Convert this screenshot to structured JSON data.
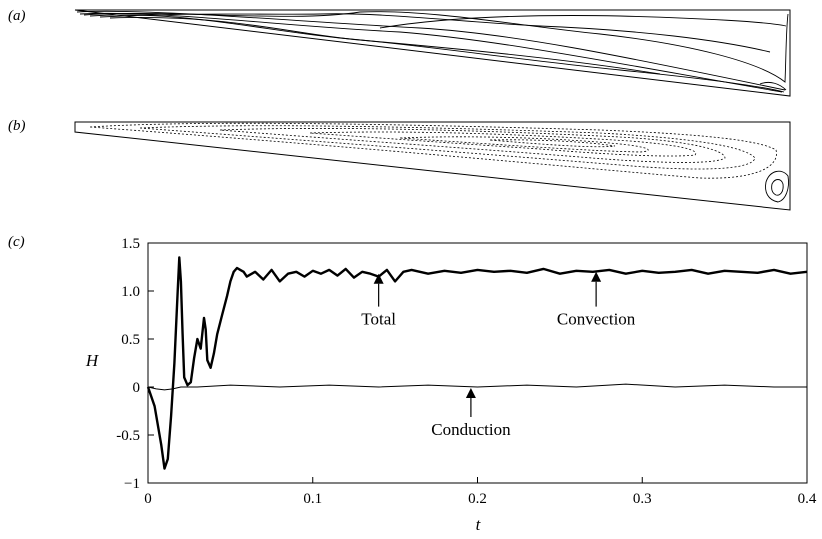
{
  "panels": [
    {
      "label": "(a)"
    },
    {
      "label": "(b)"
    },
    {
      "label": "(c)"
    }
  ],
  "chart_data": {
    "type": "line",
    "xlabel": "t",
    "ylabel": "H",
    "xlim": [
      0,
      0.4
    ],
    "ylim": [
      -1,
      1.5
    ],
    "x_ticks": [
      0,
      0.1,
      0.2,
      0.3,
      0.4
    ],
    "x_tick_labels": [
      "0",
      "0.1",
      "0.2",
      "0.3",
      "0.4"
    ],
    "y_ticks": [
      -1,
      -0.5,
      0,
      0.5,
      1.0,
      1.5
    ],
    "y_tick_labels": [
      "−1",
      "-0.5",
      "0",
      "0.5",
      "1.0",
      "1.5"
    ],
    "grid": false,
    "legend": "none",
    "series": [
      {
        "name": "Total",
        "style": "thick",
        "x": [
          0,
          0.004,
          0.008,
          0.01,
          0.012,
          0.014,
          0.016,
          0.018,
          0.019,
          0.02,
          0.021,
          0.022,
          0.024,
          0.026,
          0.028,
          0.03,
          0.032,
          0.034,
          0.035,
          0.036,
          0.038,
          0.04,
          0.042,
          0.045,
          0.048,
          0.05,
          0.052,
          0.054,
          0.056,
          0.058,
          0.06,
          0.065,
          0.07,
          0.075,
          0.08,
          0.085,
          0.09,
          0.095,
          0.1,
          0.105,
          0.11,
          0.115,
          0.12,
          0.125,
          0.13,
          0.135,
          0.14,
          0.145,
          0.15,
          0.155,
          0.16,
          0.17,
          0.18,
          0.19,
          0.2,
          0.21,
          0.22,
          0.23,
          0.24,
          0.25,
          0.26,
          0.27,
          0.28,
          0.29,
          0.3,
          0.31,
          0.32,
          0.33,
          0.34,
          0.35,
          0.36,
          0.37,
          0.38,
          0.39,
          0.4
        ],
        "values": [
          0,
          -0.2,
          -0.6,
          -0.85,
          -0.75,
          -0.3,
          0.25,
          1.0,
          1.35,
          1.1,
          0.55,
          0.1,
          0.02,
          0.05,
          0.3,
          0.5,
          0.4,
          0.72,
          0.6,
          0.28,
          0.2,
          0.35,
          0.55,
          0.75,
          0.95,
          1.1,
          1.2,
          1.24,
          1.22,
          1.2,
          1.15,
          1.2,
          1.12,
          1.22,
          1.1,
          1.18,
          1.2,
          1.15,
          1.21,
          1.18,
          1.22,
          1.16,
          1.23,
          1.14,
          1.2,
          1.18,
          1.15,
          1.22,
          1.1,
          1.2,
          1.22,
          1.18,
          1.21,
          1.19,
          1.22,
          1.2,
          1.21,
          1.19,
          1.23,
          1.18,
          1.21,
          1.2,
          1.22,
          1.18,
          1.21,
          1.19,
          1.2,
          1.22,
          1.18,
          1.21,
          1.2,
          1.19,
          1.22,
          1.18,
          1.2
        ]
      },
      {
        "name": "Conduction",
        "style": "thin",
        "x": [
          0,
          0.005,
          0.01,
          0.015,
          0.02,
          0.03,
          0.05,
          0.08,
          0.11,
          0.14,
          0.17,
          0.2,
          0.23,
          0.26,
          0.29,
          0.32,
          0.35,
          0.38,
          0.4
        ],
        "values": [
          0,
          -0.02,
          -0.03,
          -0.02,
          0.0,
          0.0,
          0.02,
          0.0,
          0.02,
          0.0,
          0.02,
          0.0,
          0.02,
          0.0,
          0.03,
          0.0,
          0.02,
          0.0,
          0.0
        ]
      }
    ],
    "annotations": [
      {
        "text": "Total",
        "x": 0.14,
        "y": 0.65,
        "arrow_to": [
          0.14,
          1.18
        ]
      },
      {
        "text": "Convection",
        "x": 0.272,
        "y": 0.65,
        "arrow_to": [
          0.272,
          1.2
        ]
      },
      {
        "text": "Conduction",
        "x": 0.196,
        "y": -0.5,
        "arrow_to": [
          0.196,
          -0.01
        ]
      }
    ]
  }
}
